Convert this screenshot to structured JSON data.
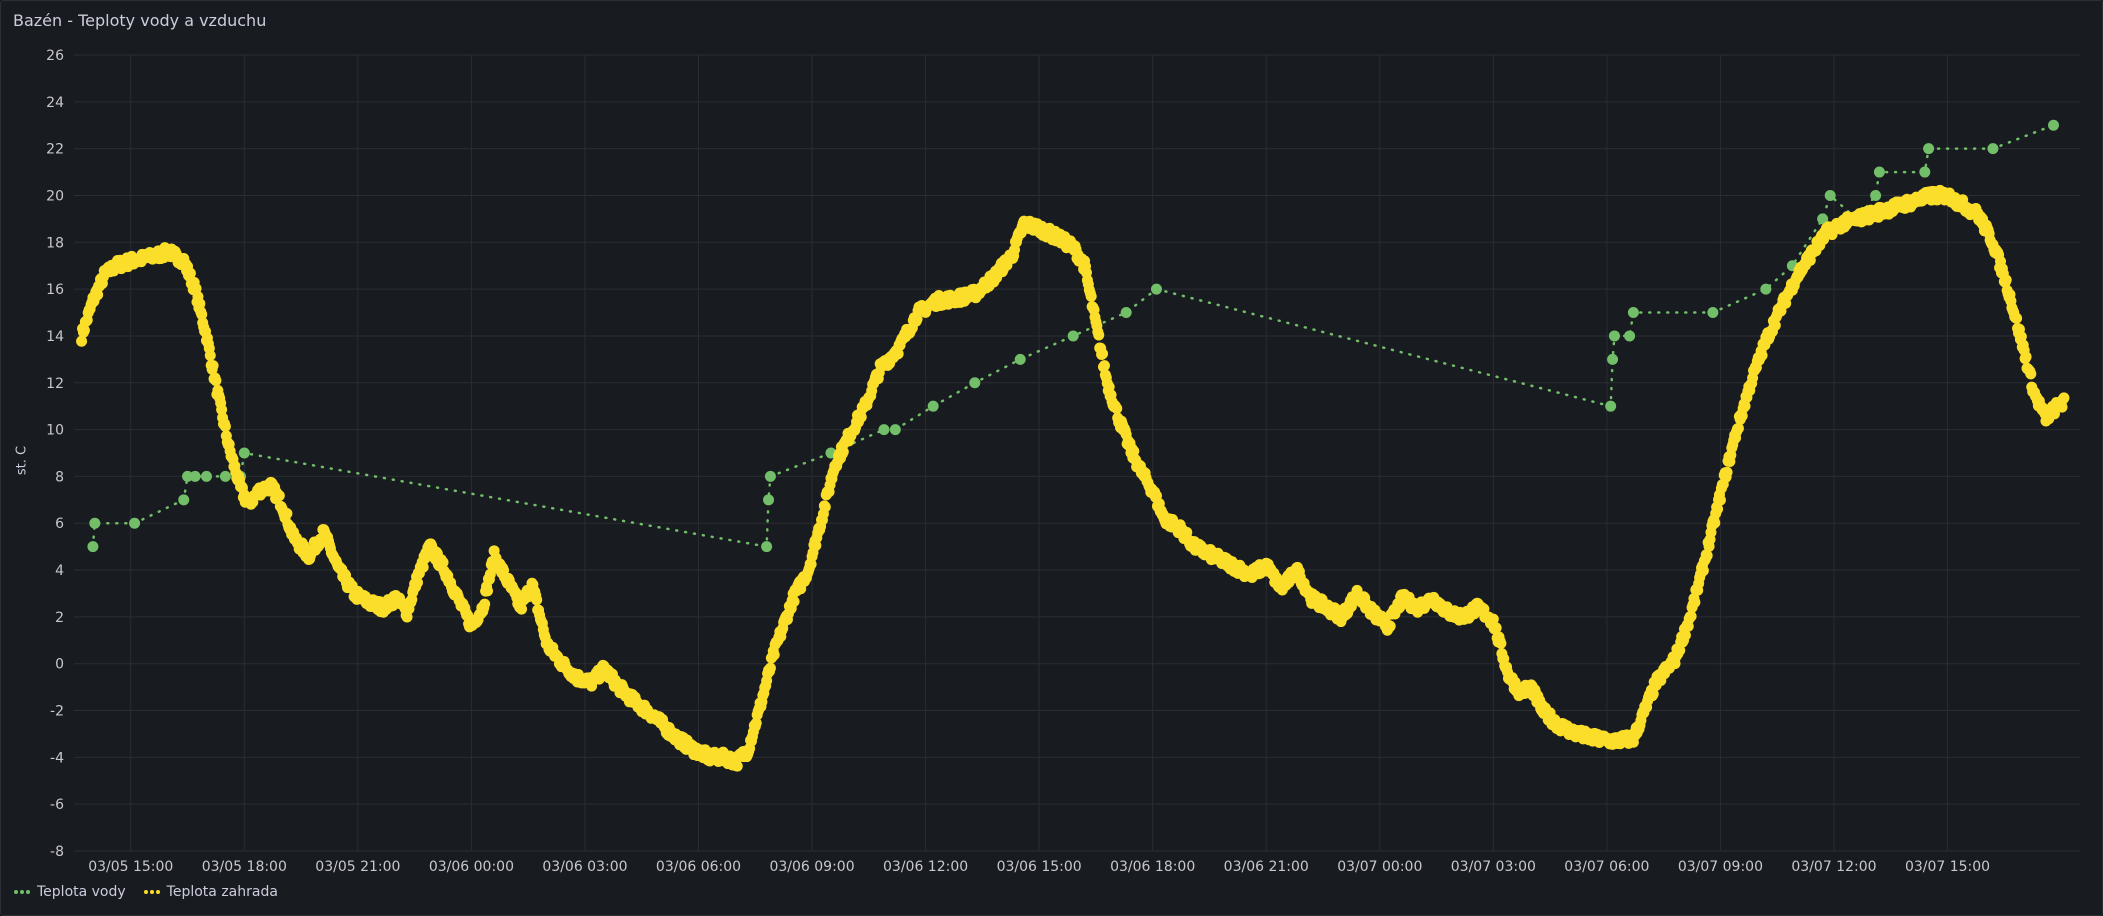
{
  "panel": {
    "title": "Bazén - Teploty vody a vzduchu"
  },
  "chart_data": {
    "type": "scatter",
    "title": "Bazén - Teploty vody a vzduchu",
    "ylabel": "st. C",
    "xlabel": "",
    "ylim": [
      -8,
      26
    ],
    "yticks": [
      -8,
      -6,
      -4,
      -2,
      0,
      2,
      4,
      6,
      8,
      10,
      12,
      14,
      16,
      18,
      20,
      22,
      24,
      26
    ],
    "xlim_hours": [
      13.5,
      66.5
    ],
    "xticks": [
      {
        "h": 15,
        "label": "03/05 15:00"
      },
      {
        "h": 18,
        "label": "03/05 18:00"
      },
      {
        "h": 21,
        "label": "03/05 21:00"
      },
      {
        "h": 24,
        "label": "03/06 00:00"
      },
      {
        "h": 27,
        "label": "03/06 03:00"
      },
      {
        "h": 30,
        "label": "03/06 06:00"
      },
      {
        "h": 33,
        "label": "03/06 09:00"
      },
      {
        "h": 36,
        "label": "03/06 12:00"
      },
      {
        "h": 39,
        "label": "03/06 15:00"
      },
      {
        "h": 42,
        "label": "03/06 18:00"
      },
      {
        "h": 45,
        "label": "03/06 21:00"
      },
      {
        "h": 48,
        "label": "03/07 00:00"
      },
      {
        "h": 51,
        "label": "03/07 03:00"
      },
      {
        "h": 54,
        "label": "03/07 06:00"
      },
      {
        "h": 57,
        "label": "03/07 09:00"
      },
      {
        "h": 60,
        "label": "03/07 12:00"
      },
      {
        "h": 63,
        "label": "03/07 15:00"
      }
    ],
    "grid": true,
    "legend_position": "bottom-left",
    "series": [
      {
        "name": "Teplota vody",
        "color": "#73bf69",
        "style": "dotted-line-with-points",
        "points": [
          [
            14.0,
            5
          ],
          [
            14.05,
            6
          ],
          [
            15.1,
            6
          ],
          [
            16.4,
            7
          ],
          [
            16.5,
            8
          ],
          [
            16.7,
            8
          ],
          [
            17.0,
            8
          ],
          [
            17.5,
            8
          ],
          [
            17.9,
            8
          ],
          [
            18.0,
            9
          ],
          [
            31.8,
            5
          ],
          [
            31.85,
            7
          ],
          [
            31.9,
            8
          ],
          [
            33.5,
            9
          ],
          [
            34.9,
            10
          ],
          [
            35.2,
            10
          ],
          [
            36.2,
            11
          ],
          [
            37.3,
            12
          ],
          [
            38.5,
            13
          ],
          [
            39.9,
            14
          ],
          [
            41.3,
            15
          ],
          [
            42.1,
            16
          ],
          [
            54.1,
            11
          ],
          [
            54.15,
            13
          ],
          [
            54.2,
            14
          ],
          [
            54.6,
            14
          ],
          [
            54.7,
            15
          ],
          [
            56.8,
            15
          ],
          [
            58.2,
            16
          ],
          [
            58.9,
            17
          ],
          [
            59.7,
            19
          ],
          [
            59.9,
            20
          ],
          [
            60.6,
            19
          ],
          [
            61.1,
            20
          ],
          [
            61.2,
            21
          ],
          [
            62.4,
            21
          ],
          [
            62.5,
            22
          ],
          [
            64.2,
            22
          ],
          [
            65.8,
            23
          ]
        ]
      },
      {
        "name": "Teplota zahrada",
        "color": "#fade2a",
        "style": "points",
        "profile": [
          [
            13.7,
            14.0
          ],
          [
            14.0,
            15.5
          ],
          [
            14.3,
            16.6
          ],
          [
            14.6,
            17.0
          ],
          [
            15.0,
            17.2
          ],
          [
            15.6,
            17.4
          ],
          [
            16.0,
            17.6
          ],
          [
            16.4,
            17.2
          ],
          [
            16.7,
            16.0
          ],
          [
            17.0,
            14.0
          ],
          [
            17.3,
            11.5
          ],
          [
            17.6,
            9.2
          ],
          [
            17.9,
            7.5
          ],
          [
            18.1,
            6.8
          ],
          [
            18.4,
            7.4
          ],
          [
            18.7,
            7.6
          ],
          [
            19.0,
            6.8
          ],
          [
            19.3,
            5.4
          ],
          [
            19.7,
            4.6
          ],
          [
            20.1,
            5.6
          ],
          [
            20.5,
            4.0
          ],
          [
            20.9,
            3.0
          ],
          [
            21.3,
            2.6
          ],
          [
            21.7,
            2.4
          ],
          [
            22.0,
            2.8
          ],
          [
            22.3,
            2.2
          ],
          [
            22.6,
            3.8
          ],
          [
            22.9,
            5.0
          ],
          [
            23.3,
            4.0
          ],
          [
            23.7,
            2.6
          ],
          [
            24.0,
            1.6
          ],
          [
            24.3,
            2.4
          ],
          [
            24.6,
            4.6
          ],
          [
            25.0,
            3.4
          ],
          [
            25.3,
            2.4
          ],
          [
            25.6,
            3.4
          ],
          [
            26.0,
            0.8
          ],
          [
            26.4,
            0.0
          ],
          [
            26.8,
            -0.6
          ],
          [
            27.2,
            -0.8
          ],
          [
            27.5,
            -0.2
          ],
          [
            27.9,
            -1.0
          ],
          [
            28.3,
            -1.6
          ],
          [
            28.8,
            -2.2
          ],
          [
            29.3,
            -3.0
          ],
          [
            29.8,
            -3.6
          ],
          [
            30.3,
            -4.0
          ],
          [
            30.7,
            -4.0
          ],
          [
            31.0,
            -4.2
          ],
          [
            31.3,
            -3.7
          ],
          [
            31.6,
            -2.0
          ],
          [
            32.0,
            0.5
          ],
          [
            32.5,
            2.8
          ],
          [
            32.9,
            4.0
          ],
          [
            33.3,
            6.5
          ],
          [
            33.6,
            8.5
          ],
          [
            34.0,
            9.8
          ],
          [
            34.4,
            11.0
          ],
          [
            34.8,
            12.6
          ],
          [
            35.3,
            13.5
          ],
          [
            35.8,
            15.0
          ],
          [
            36.3,
            15.5
          ],
          [
            36.8,
            15.6
          ],
          [
            37.3,
            15.8
          ],
          [
            37.8,
            16.5
          ],
          [
            38.3,
            17.5
          ],
          [
            38.6,
            18.8
          ],
          [
            39.0,
            18.6
          ],
          [
            39.5,
            18.2
          ],
          [
            39.9,
            17.8
          ],
          [
            40.2,
            17.0
          ],
          [
            40.5,
            14.5
          ],
          [
            40.8,
            12.0
          ],
          [
            41.1,
            10.5
          ],
          [
            41.4,
            9.2
          ],
          [
            41.7,
            8.2
          ],
          [
            42.0,
            7.4
          ],
          [
            42.3,
            6.2
          ],
          [
            42.7,
            5.8
          ],
          [
            43.1,
            5.0
          ],
          [
            43.6,
            4.6
          ],
          [
            44.1,
            4.2
          ],
          [
            44.6,
            3.8
          ],
          [
            45.0,
            4.2
          ],
          [
            45.4,
            3.2
          ],
          [
            45.8,
            4.0
          ],
          [
            46.2,
            2.8
          ],
          [
            46.6,
            2.4
          ],
          [
            47.0,
            2.0
          ],
          [
            47.4,
            3.0
          ],
          [
            47.8,
            2.2
          ],
          [
            48.2,
            1.6
          ],
          [
            48.6,
            2.8
          ],
          [
            49.0,
            2.4
          ],
          [
            49.4,
            2.8
          ],
          [
            49.8,
            2.2
          ],
          [
            50.2,
            2.0
          ],
          [
            50.6,
            2.4
          ],
          [
            51.0,
            1.8
          ],
          [
            51.4,
            -0.5
          ],
          [
            51.7,
            -1.2
          ],
          [
            52.0,
            -1.0
          ],
          [
            52.3,
            -2.0
          ],
          [
            52.7,
            -2.6
          ],
          [
            53.2,
            -3.0
          ],
          [
            53.7,
            -3.2
          ],
          [
            54.2,
            -3.3
          ],
          [
            54.7,
            -3.2
          ],
          [
            55.0,
            -2.0
          ],
          [
            55.3,
            -0.8
          ],
          [
            55.8,
            0.2
          ],
          [
            56.2,
            2.0
          ],
          [
            56.6,
            4.5
          ],
          [
            57.0,
            7.2
          ],
          [
            57.4,
            9.8
          ],
          [
            57.8,
            12.0
          ],
          [
            58.2,
            13.8
          ],
          [
            58.6,
            15.2
          ],
          [
            59.0,
            16.5
          ],
          [
            59.4,
            17.5
          ],
          [
            59.8,
            18.4
          ],
          [
            60.2,
            18.8
          ],
          [
            60.6,
            19.0
          ],
          [
            61.0,
            19.2
          ],
          [
            61.4,
            19.4
          ],
          [
            61.8,
            19.6
          ],
          [
            62.2,
            19.8
          ],
          [
            62.6,
            20.0
          ],
          [
            63.0,
            20.0
          ],
          [
            63.4,
            19.6
          ],
          [
            63.8,
            19.2
          ],
          [
            64.2,
            18.0
          ],
          [
            64.6,
            16.0
          ],
          [
            65.0,
            13.5
          ],
          [
            65.3,
            11.5
          ],
          [
            65.6,
            10.5
          ],
          [
            65.9,
            11.0
          ],
          [
            66.1,
            11.2
          ]
        ]
      }
    ]
  },
  "legend": {
    "items": [
      {
        "label": "Teplota vody",
        "color": "#73bf69"
      },
      {
        "label": "Teplota zahrada",
        "color": "#fade2a"
      }
    ]
  }
}
